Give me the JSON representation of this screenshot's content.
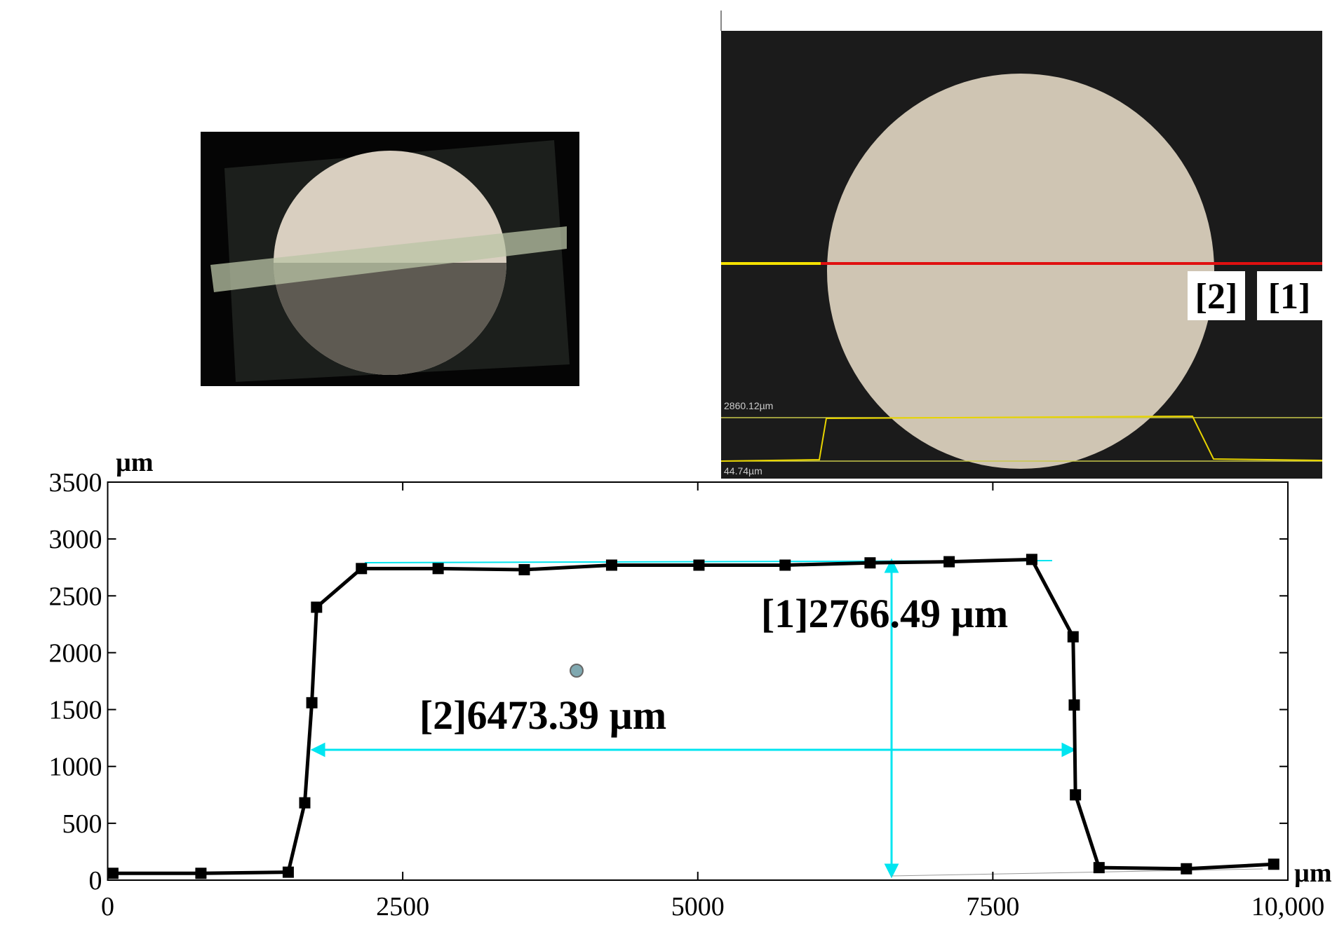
{
  "chart_data": {
    "type": "line",
    "xlabel": "µm",
    "ylabel": "µm",
    "xlim": [
      0,
      10000
    ],
    "xticks": [
      0,
      2500,
      5000,
      7500,
      {
        "value": 10000,
        "label": "10,000"
      }
    ],
    "ylim": [
      0,
      3500
    ],
    "yticks": [
      0,
      500,
      1000,
      1500,
      2000,
      2500,
      3000,
      3500
    ],
    "x": [
      44,
      790,
      1530,
      1670,
      1730,
      1770,
      2150,
      2800,
      3530,
      4270,
      5010,
      5740,
      6460,
      7130,
      7830,
      8180,
      8190,
      8200,
      8400,
      9140,
      9880
    ],
    "series": [
      {
        "color": "#000000",
        "values": [
          60,
          60,
          70,
          680,
          1560,
          2400,
          2740,
          2740,
          2730,
          2770,
          2770,
          2770,
          2790,
          2800,
          2820,
          2140,
          1540,
          750,
          110,
          100,
          140
        ]
      }
    ],
    "annotations": [
      "[1]2766.49 µm",
      "[2]6473.39 µm"
    ]
  },
  "inset": {
    "top_label": "2860.12µm",
    "bottom_label": "44.74µm",
    "markers": [
      "[2]",
      "[1]"
    ]
  }
}
